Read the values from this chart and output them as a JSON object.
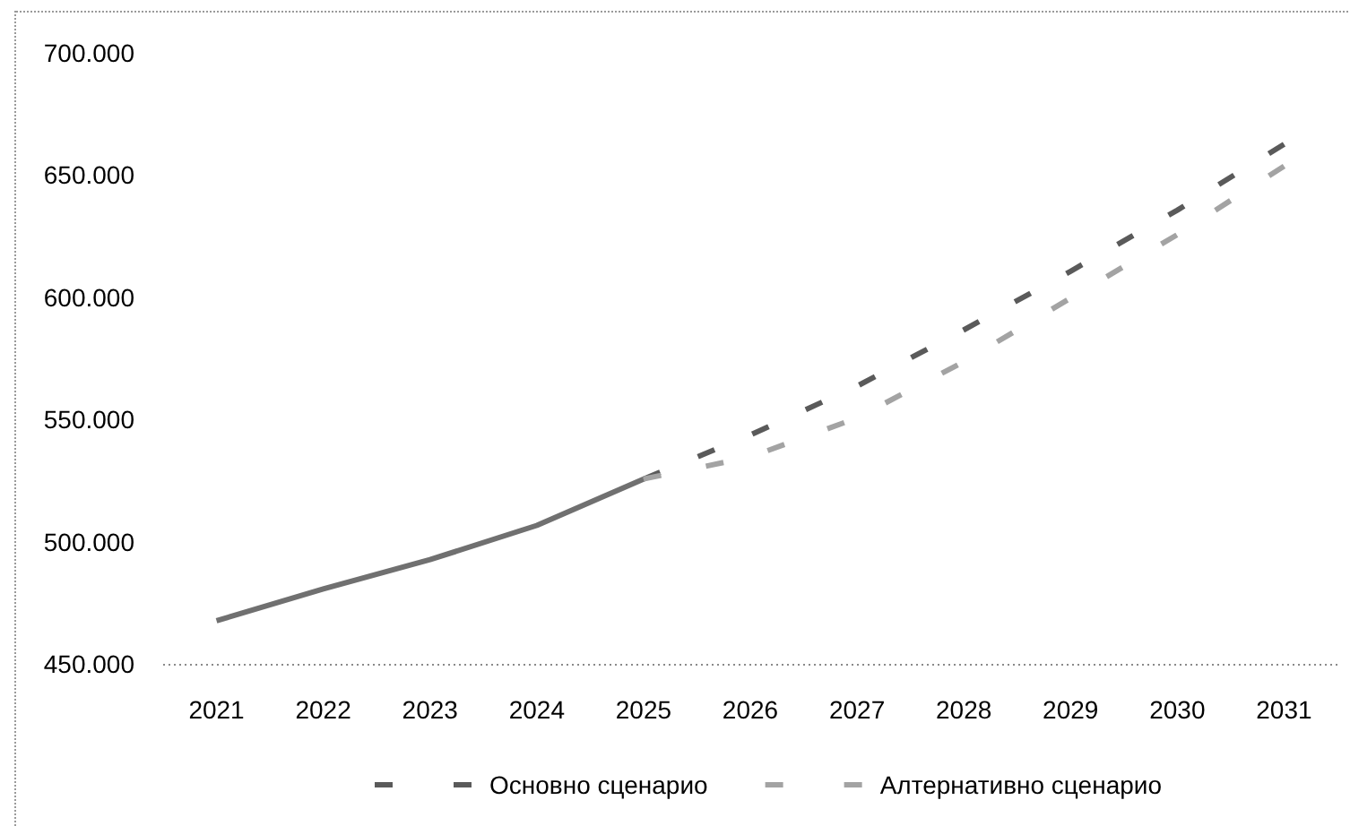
{
  "chart_data": {
    "type": "line",
    "categories": [
      "2021",
      "2022",
      "2023",
      "2024",
      "2025",
      "2026",
      "2027",
      "2028",
      "2029",
      "2030",
      "2031"
    ],
    "ylim": [
      450000,
      700000
    ],
    "yticks": [
      {
        "value": 450000,
        "label": "450.000"
      },
      {
        "value": 500000,
        "label": "500.000"
      },
      {
        "value": 550000,
        "label": "550.000"
      },
      {
        "value": 600000,
        "label": "600.000"
      },
      {
        "value": 650000,
        "label": "650.000"
      },
      {
        "value": 700000,
        "label": "700.000"
      }
    ],
    "series": [
      {
        "color": "#707070",
        "line_style": "solid",
        "values": [
          468000,
          481000,
          493000,
          507000,
          526000,
          null,
          null,
          null,
          null,
          null,
          null
        ]
      },
      {
        "name": "Основно сценарио",
        "color": "#5a5a5a",
        "line_style": "dashed",
        "values": [
          null,
          null,
          null,
          null,
          526000,
          544000,
          564000,
          587000,
          611000,
          636000,
          663000
        ]
      },
      {
        "name": "Алтернативно сценарио",
        "color": "#a3a3a3",
        "line_style": "dashed",
        "values": [
          null,
          null,
          null,
          null,
          526000,
          535000,
          551000,
          574000,
          600000,
          626000,
          654000
        ]
      }
    ],
    "legend": "bottom"
  }
}
